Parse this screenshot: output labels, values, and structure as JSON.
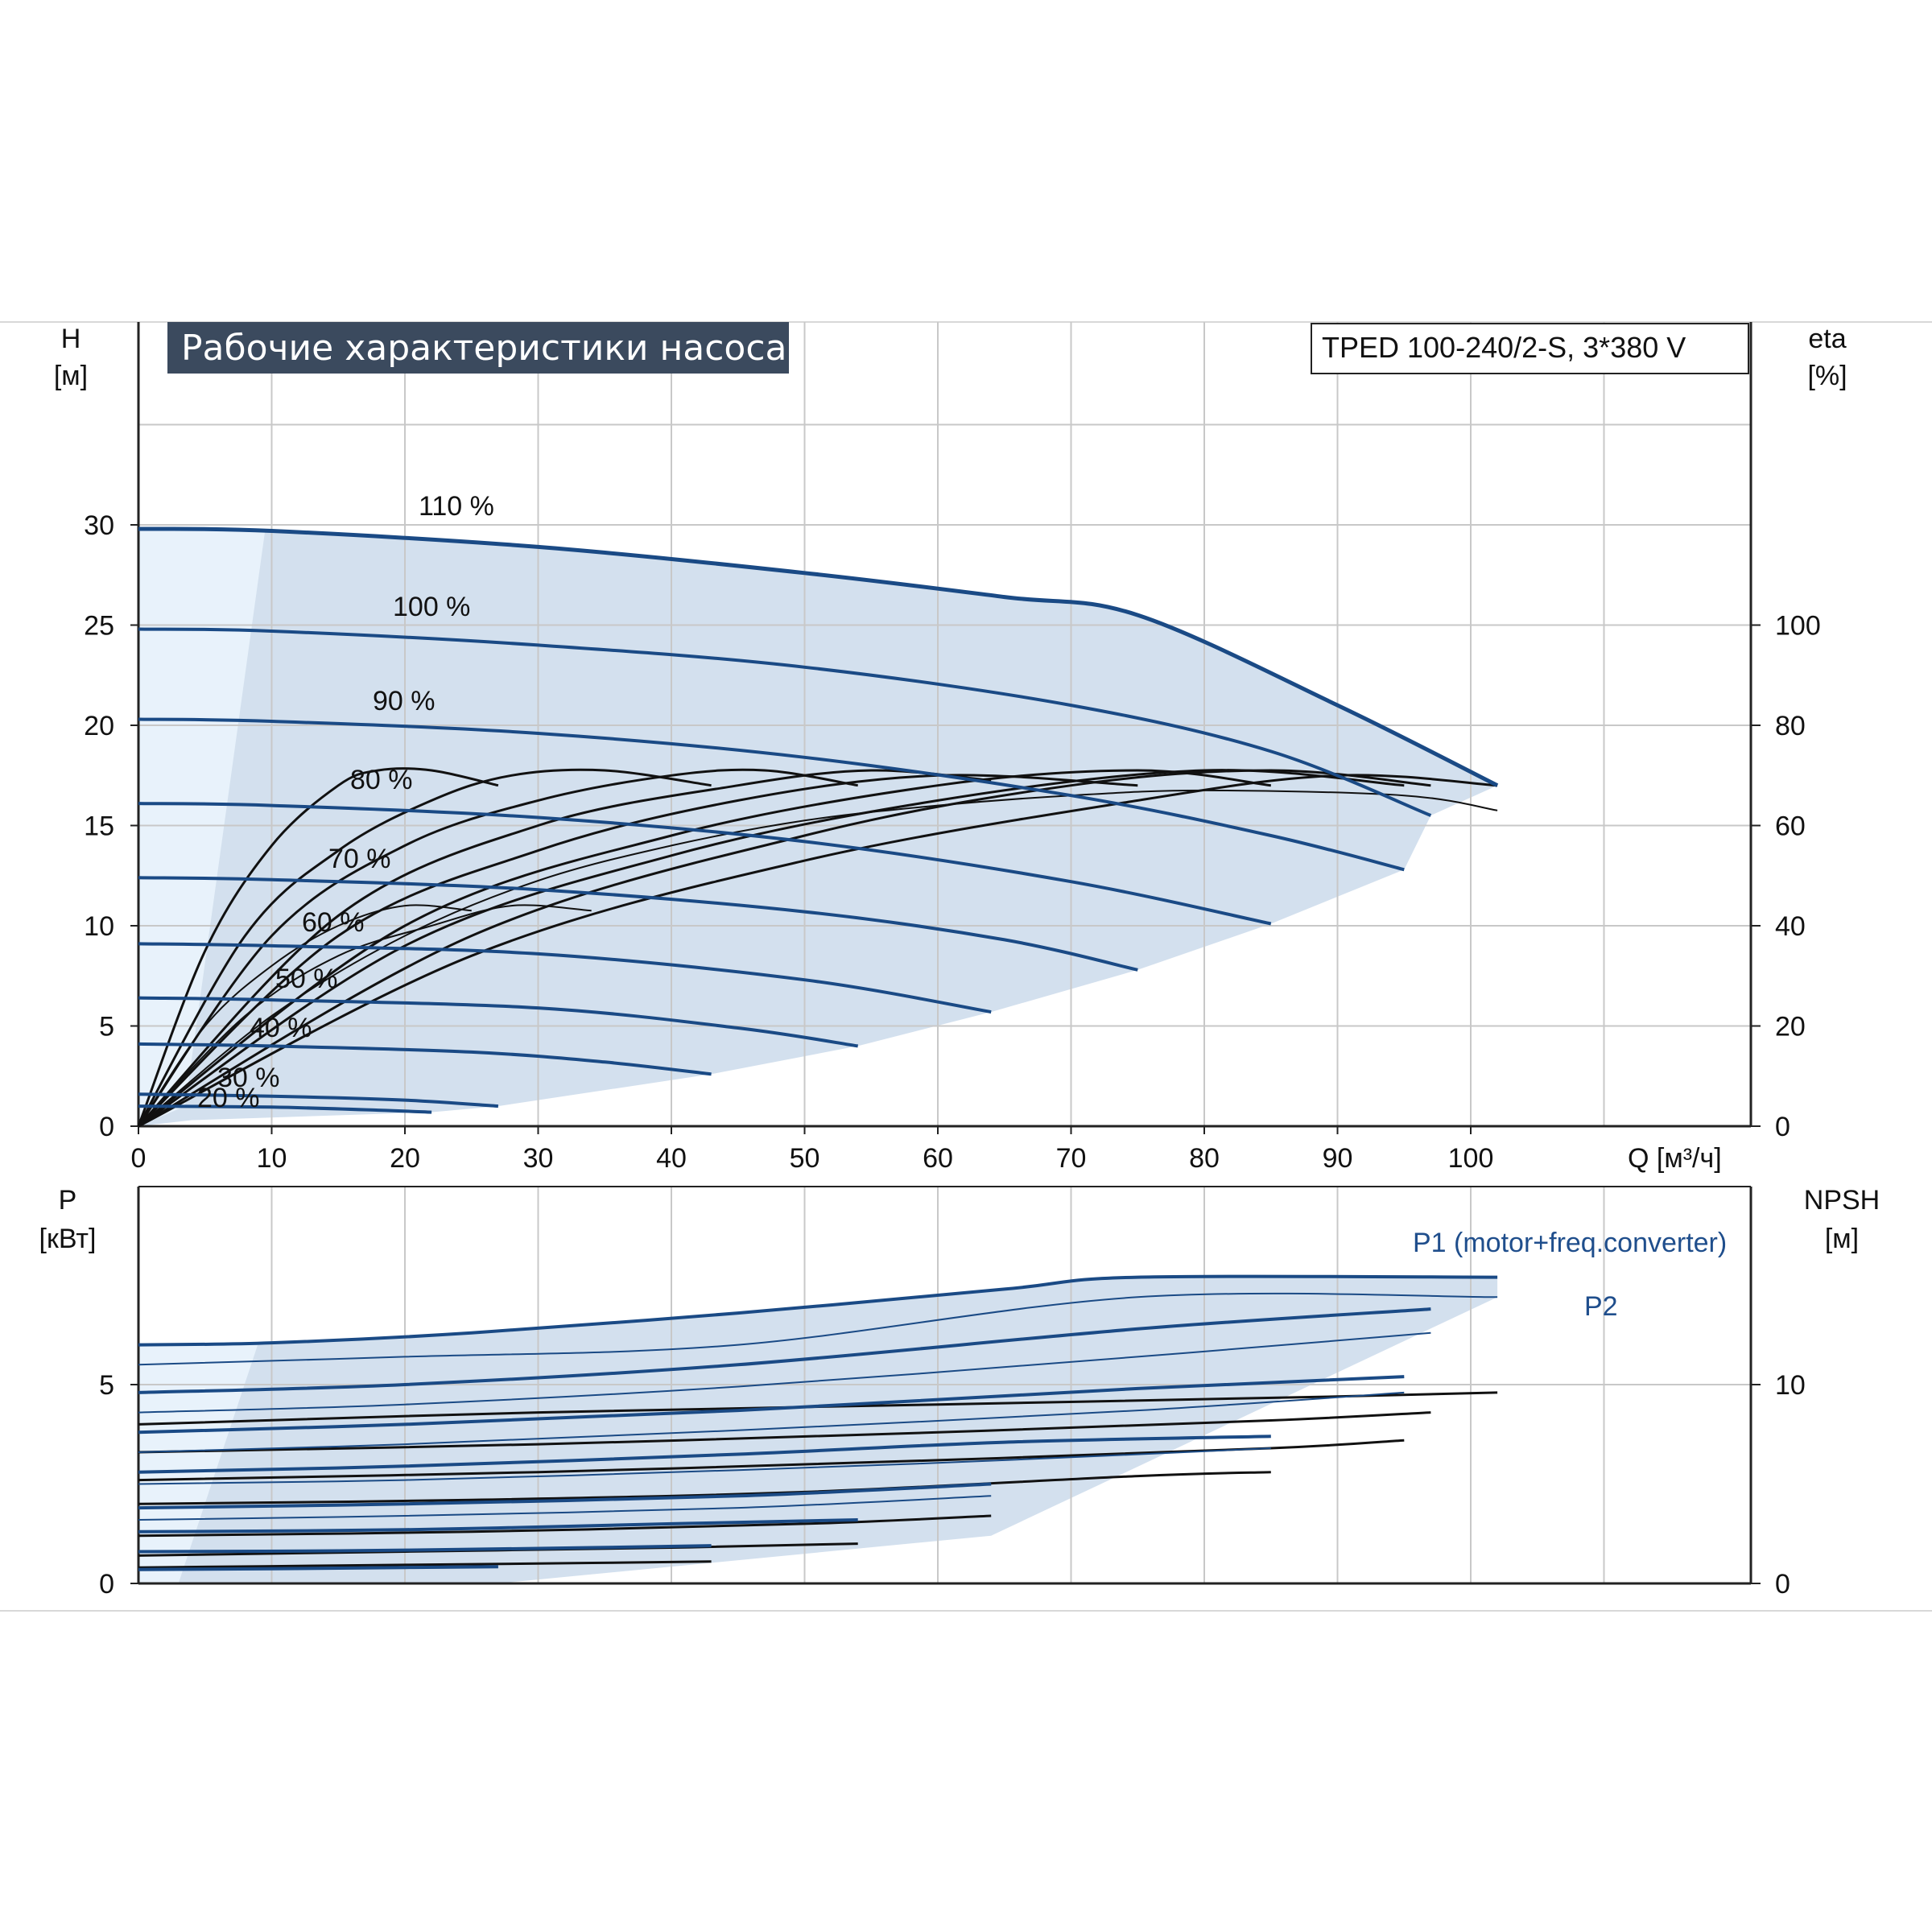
{
  "title": "Рабочие характеристики насоса",
  "model": "TPED 100-240/2-S, 3*380 V",
  "colors": {
    "curve_blue": "#1a4a85",
    "area_fill": "#d3e0ee",
    "area_light": "#e8f2fb",
    "grid": "#c8c8c8",
    "title_bg": "#3b4a5e",
    "black": "#111111"
  },
  "chart_data": [
    {
      "type": "line",
      "name": "head",
      "xlabel": "Q [м³/ч]",
      "ylabel": "H [м]",
      "y2label": "eta [%]",
      "xlim": [
        0,
        120
      ],
      "ylim": [
        0,
        35
      ],
      "y2lim": [
        0,
        140
      ],
      "x_ticks": [
        "0",
        "10",
        "20",
        "30",
        "40",
        "50",
        "60",
        "70",
        "80",
        "90",
        "100"
      ],
      "y_ticks": [
        "0",
        "5",
        "10",
        "15",
        "20",
        "25",
        "30"
      ],
      "y2_ticks": [
        "0",
        "20",
        "40",
        "60",
        "80",
        "100"
      ],
      "grid": true,
      "head_curves": [
        {
          "label": "110 %",
          "x": [
            0,
            10,
            30,
            50,
            65,
            75,
            90,
            102
          ],
          "y": [
            29.8,
            29.7,
            28.9,
            27.6,
            26.4,
            25.5,
            21.0,
            17.0
          ]
        },
        {
          "label": "100 %",
          "x": [
            0,
            10,
            30,
            50,
            70,
            85,
            97
          ],
          "y": [
            24.8,
            24.7,
            24.0,
            22.9,
            21.0,
            18.7,
            15.5
          ]
        },
        {
          "label": "90 %",
          "x": [
            0,
            10,
            30,
            50,
            70,
            85,
            95
          ],
          "y": [
            20.3,
            20.2,
            19.6,
            18.4,
            16.5,
            14.5,
            12.8
          ]
        },
        {
          "label": "80 %",
          "x": [
            0,
            10,
            30,
            50,
            70,
            85
          ],
          "y": [
            16.1,
            16.0,
            15.4,
            14.2,
            12.2,
            10.1
          ]
        },
        {
          "label": "70 %",
          "x": [
            0,
            10,
            30,
            50,
            65,
            75
          ],
          "y": [
            12.4,
            12.3,
            11.8,
            10.7,
            9.3,
            7.8
          ]
        },
        {
          "label": "60 %",
          "x": [
            0,
            10,
            30,
            50,
            64
          ],
          "y": [
            9.1,
            9.0,
            8.6,
            7.3,
            5.7
          ]
        },
        {
          "label": "50 %",
          "x": [
            0,
            10,
            30,
            45,
            54
          ],
          "y": [
            6.4,
            6.3,
            5.9,
            4.9,
            4.0
          ]
        },
        {
          "label": "40 %",
          "x": [
            0,
            10,
            25,
            35,
            43
          ],
          "y": [
            4.1,
            4.0,
            3.7,
            3.2,
            2.6
          ]
        },
        {
          "label": "30 %",
          "x": [
            0,
            10,
            20,
            27
          ],
          "y": [
            1.6,
            1.5,
            1.3,
            1.0
          ]
        },
        {
          "label": "20 %",
          "x": [
            0,
            10,
            18,
            22
          ],
          "y": [
            1.0,
            0.95,
            0.8,
            0.7
          ]
        }
      ],
      "eta_curves": [
        {
          "x": [
            0,
            5,
            10,
            15,
            18,
            22,
            27
          ],
          "y": [
            0,
            35,
            56,
            68,
            71,
            71,
            68
          ]
        },
        {
          "x": [
            0,
            8,
            15,
            22,
            28,
            35,
            43
          ],
          "y": [
            0,
            38,
            55,
            65,
            70,
            71,
            68
          ]
        },
        {
          "x": [
            0,
            10,
            20,
            30,
            40,
            47,
            54
          ],
          "y": [
            0,
            38,
            56,
            65,
            70,
            71,
            68
          ]
        },
        {
          "x": [
            0,
            15,
            30,
            45,
            55,
            64
          ],
          "y": [
            0,
            42,
            60,
            68,
            71,
            69
          ]
        },
        {
          "x": [
            0,
            15,
            30,
            45,
            60,
            75
          ],
          "y": [
            0,
            38,
            55,
            65,
            70,
            68
          ]
        },
        {
          "x": [
            0,
            20,
            40,
            60,
            75,
            85
          ],
          "y": [
            0,
            40,
            58,
            68,
            71,
            68
          ]
        },
        {
          "x": [
            0,
            20,
            40,
            60,
            80,
            95
          ],
          "y": [
            0,
            36,
            54,
            65,
            71,
            68
          ]
        },
        {
          "x": [
            0,
            25,
            50,
            70,
            85,
            97
          ],
          "y": [
            0,
            38,
            58,
            68,
            71,
            68
          ]
        },
        {
          "x": [
            0,
            25,
            50,
            75,
            90,
            102
          ],
          "y": [
            0,
            34,
            53,
            65,
            70,
            68
          ]
        },
        {
          "x": [
            0,
            5,
            10,
            15,
            20,
            25
          ],
          "y": [
            0,
            20,
            32,
            40,
            44,
            43
          ]
        },
        {
          "x": [
            0,
            8,
            15,
            22,
            28,
            34
          ],
          "y": [
            0,
            22,
            34,
            40,
            44,
            43
          ]
        },
        {
          "x": [
            0,
            10,
            20,
            30,
            40,
            50,
            60,
            70,
            80,
            95,
            102
          ],
          "y": [
            0,
            22,
            38,
            49,
            56,
            61,
            64,
            66,
            67,
            66,
            63
          ]
        }
      ]
    },
    {
      "type": "line",
      "name": "power",
      "xlabel": "",
      "ylabel": "P [кВт]",
      "y2label": "NPSH [м]",
      "xlim": [
        0,
        120
      ],
      "ylim": [
        0,
        10
      ],
      "y2lim": [
        0,
        20
      ],
      "y_ticks": [
        "0",
        "5"
      ],
      "y2_ticks": [
        "0",
        "10"
      ],
      "grid": true,
      "series_labels": [
        "P1 (motor+freq.converter)",
        "P2"
      ],
      "p1_curves": [
        {
          "x": [
            0,
            10,
            25,
            45,
            65,
            75,
            102
          ],
          "y": [
            6.0,
            6.05,
            6.3,
            6.8,
            7.4,
            7.7,
            7.7
          ]
        },
        {
          "x": [
            0,
            20,
            45,
            75,
            97
          ],
          "y": [
            4.8,
            5.0,
            5.5,
            6.4,
            6.9
          ]
        },
        {
          "x": [
            0,
            20,
            45,
            75,
            95
          ],
          "y": [
            3.8,
            4.0,
            4.35,
            4.9,
            5.2
          ]
        },
        {
          "x": [
            0,
            20,
            45,
            65,
            85
          ],
          "y": [
            2.8,
            2.95,
            3.25,
            3.55,
            3.7
          ]
        },
        {
          "x": [
            0,
            20,
            45,
            64
          ],
          "y": [
            1.9,
            2.0,
            2.2,
            2.5
          ]
        },
        {
          "x": [
            0,
            20,
            40,
            54
          ],
          "y": [
            1.3,
            1.35,
            1.5,
            1.6
          ]
        },
        {
          "x": [
            0,
            15,
            30,
            43
          ],
          "y": [
            0.8,
            0.82,
            0.88,
            0.95
          ]
        },
        {
          "x": [
            0,
            10,
            20,
            27
          ],
          "y": [
            0.35,
            0.37,
            0.4,
            0.42
          ]
        }
      ],
      "p2_curves": [
        {
          "x": [
            0,
            20,
            45,
            75,
            102
          ],
          "y": [
            5.5,
            5.7,
            6.0,
            7.2,
            7.2
          ]
        },
        {
          "x": [
            0,
            20,
            45,
            75,
            97
          ],
          "y": [
            4.3,
            4.5,
            4.95,
            5.7,
            6.3
          ]
        },
        {
          "x": [
            0,
            20,
            45,
            75,
            95
          ],
          "y": [
            3.3,
            3.5,
            3.85,
            4.35,
            4.8
          ]
        },
        {
          "x": [
            0,
            20,
            45,
            65,
            85
          ],
          "y": [
            2.5,
            2.6,
            2.85,
            3.1,
            3.4
          ]
        },
        {
          "x": [
            0,
            20,
            45,
            64
          ],
          "y": [
            1.6,
            1.7,
            1.9,
            2.2
          ]
        }
      ],
      "npsh_curves": [
        {
          "x": [
            0,
            30,
            60,
            90,
            102
          ],
          "y": [
            4.0,
            4.3,
            4.5,
            4.7,
            4.8
          ]
        },
        {
          "x": [
            0,
            30,
            60,
            85,
            97
          ],
          "y": [
            3.3,
            3.5,
            3.8,
            4.1,
            4.3
          ]
        },
        {
          "x": [
            0,
            30,
            60,
            85,
            95
          ],
          "y": [
            2.6,
            2.8,
            3.1,
            3.4,
            3.6
          ]
        },
        {
          "x": [
            0,
            25,
            50,
            75,
            85
          ],
          "y": [
            2.0,
            2.1,
            2.3,
            2.7,
            2.8
          ]
        },
        {
          "x": [
            0,
            25,
            50,
            64
          ],
          "y": [
            1.2,
            1.3,
            1.5,
            1.7
          ]
        },
        {
          "x": [
            0,
            20,
            40,
            54
          ],
          "y": [
            0.7,
            0.8,
            0.9,
            1.0
          ]
        },
        {
          "x": [
            0,
            15,
            30,
            43
          ],
          "y": [
            0.4,
            0.45,
            0.5,
            0.55
          ]
        }
      ]
    }
  ]
}
